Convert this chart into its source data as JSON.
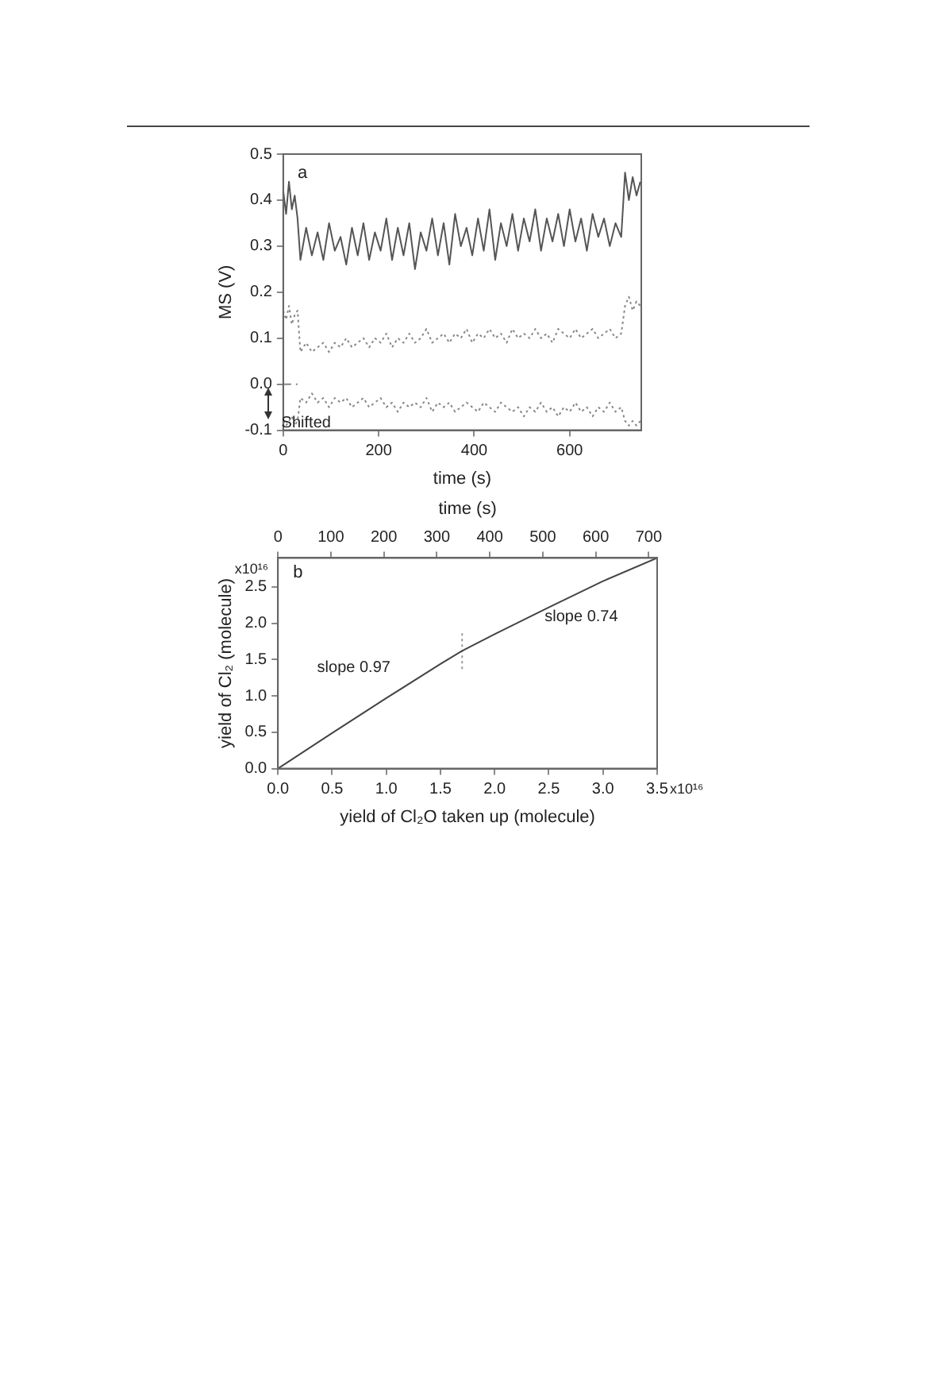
{
  "chart_data": [
    {
      "type": "line",
      "xlabel": "time (s)",
      "ylabel": "MS (V)",
      "xlim": [
        0,
        750
      ],
      "xticks": [
        0,
        200,
        400,
        600
      ],
      "ylim": [
        -0.1,
        0.5
      ],
      "yticks": [
        -0.1,
        {
          "value": 0,
          "label": "0.0"
        },
        0.1,
        0.2,
        0.3,
        0.4,
        0.5
      ],
      "grid": false,
      "legend": false,
      "marker": "none",
      "x": [
        0,
        6,
        12,
        18,
        24,
        30,
        36,
        48,
        60,
        72,
        84,
        96,
        108,
        120,
        132,
        144,
        156,
        168,
        180,
        192,
        204,
        216,
        228,
        240,
        252,
        264,
        276,
        288,
        300,
        312,
        324,
        336,
        348,
        360,
        372,
        384,
        396,
        408,
        420,
        432,
        444,
        456,
        468,
        480,
        492,
        504,
        516,
        528,
        540,
        552,
        564,
        576,
        588,
        600,
        612,
        624,
        636,
        648,
        660,
        672,
        684,
        696,
        708,
        716,
        724,
        732,
        740,
        748
      ],
      "annotations": [
        "a",
        {
          "text": "Shifted",
          "x": 48,
          "y": -0.085
        }
      ],
      "series": [
        {
          "color": "#555555",
          "line_style": "solid",
          "values": [
            0.42,
            0.37,
            0.44,
            0.38,
            0.41,
            0.36,
            0.27,
            0.34,
            0.28,
            0.33,
            0.27,
            0.35,
            0.29,
            0.32,
            0.26,
            0.34,
            0.28,
            0.35,
            0.27,
            0.33,
            0.29,
            0.36,
            0.27,
            0.34,
            0.28,
            0.35,
            0.25,
            0.33,
            0.29,
            0.36,
            0.28,
            0.35,
            0.26,
            0.37,
            0.3,
            0.34,
            0.28,
            0.36,
            0.29,
            0.38,
            0.27,
            0.35,
            0.3,
            0.37,
            0.29,
            0.36,
            0.31,
            0.38,
            0.29,
            0.36,
            0.31,
            0.37,
            0.3,
            0.38,
            0.31,
            0.36,
            0.29,
            0.37,
            0.32,
            0.36,
            0.3,
            0.35,
            0.32,
            0.46,
            0.4,
            0.45,
            0.41,
            0.44
          ]
        },
        {
          "color": "#888888",
          "line_style": "dotted",
          "values": [
            0.16,
            0.14,
            0.17,
            0.13,
            0.15,
            0.16,
            0.07,
            0.09,
            0.07,
            0.08,
            0.09,
            0.07,
            0.09,
            0.08,
            0.1,
            0.08,
            0.09,
            0.1,
            0.08,
            0.1,
            0.09,
            0.11,
            0.08,
            0.1,
            0.09,
            0.11,
            0.09,
            0.1,
            0.12,
            0.09,
            0.1,
            0.11,
            0.09,
            0.11,
            0.1,
            0.12,
            0.09,
            0.11,
            0.1,
            0.12,
            0.1,
            0.11,
            0.09,
            0.12,
            0.1,
            0.11,
            0.1,
            0.12,
            0.1,
            0.11,
            0.09,
            0.12,
            0.11,
            0.1,
            0.12,
            0.1,
            0.11,
            0.12,
            0.1,
            0.11,
            0.12,
            0.1,
            0.11,
            0.17,
            0.19,
            0.16,
            0.18,
            0.17
          ]
        },
        {
          "color": "#888888",
          "line_style": "dotted",
          "values": [
            -0.08,
            -0.09,
            -0.08,
            -0.07,
            -0.09,
            -0.08,
            -0.03,
            -0.04,
            -0.02,
            -0.04,
            -0.03,
            -0.05,
            -0.03,
            -0.04,
            -0.03,
            -0.05,
            -0.04,
            -0.03,
            -0.05,
            -0.04,
            -0.03,
            -0.05,
            -0.04,
            -0.06,
            -0.04,
            -0.05,
            -0.04,
            -0.05,
            -0.03,
            -0.06,
            -0.04,
            -0.05,
            -0.04,
            -0.06,
            -0.05,
            -0.04,
            -0.05,
            -0.06,
            -0.04,
            -0.05,
            -0.06,
            -0.04,
            -0.05,
            -0.06,
            -0.05,
            -0.07,
            -0.05,
            -0.06,
            -0.04,
            -0.06,
            -0.05,
            -0.07,
            -0.05,
            -0.06,
            -0.04,
            -0.06,
            -0.05,
            -0.07,
            -0.05,
            -0.06,
            -0.04,
            -0.06,
            -0.05,
            -0.08,
            -0.09,
            -0.08,
            -0.09,
            -0.08
          ]
        },
        {
          "color": "#888888",
          "line_style": "dashed",
          "x": [
            0,
            30
          ],
          "values": [
            0,
            0
          ]
        }
      ]
    },
    {
      "type": "line",
      "xlabel": "yield of Cl₂O taken up (molecule)",
      "ylabel": "yield of Cl₂ (molecule)",
      "x2label": "time (s)",
      "xlim": [
        0,
        3.5
      ],
      "xticks": [
        {
          "value": 0,
          "label": "0.0"
        },
        0.5,
        {
          "value": 1,
          "label": "1.0"
        },
        1.5,
        {
          "value": 2,
          "label": "2.0"
        },
        2.5,
        {
          "value": 3,
          "label": "3.0"
        },
        3.5
      ],
      "x2lim": [
        0,
        716
      ],
      "x2ticks": [
        0,
        100,
        200,
        300,
        400,
        500,
        600,
        700
      ],
      "ylim": [
        0,
        2.9
      ],
      "yticks": [
        {
          "value": 0,
          "label": "0.0"
        },
        0.5,
        {
          "value": 1,
          "label": "1.0"
        },
        1.5,
        {
          "value": 2,
          "label": "2.0"
        },
        2.5
      ],
      "grid": false,
      "legend": false,
      "marker": "none",
      "annotations": [
        "b",
        "slope 0.97",
        "slope 0.74",
        "x10¹⁶",
        "x10¹⁶"
      ],
      "series": [
        {
          "color": "#444444",
          "line_style": "solid",
          "x": [
            0,
            0.5,
            1.0,
            1.5,
            1.7,
            2.0,
            2.5,
            3.0,
            3.5
          ],
          "values": [
            0,
            0.49,
            0.97,
            1.44,
            1.62,
            1.85,
            2.22,
            2.58,
            2.9
          ]
        },
        {
          "color": "#999999",
          "line_style": "dotted",
          "x": [
            1.7,
            1.7
          ],
          "values": [
            1.37,
            1.87
          ]
        }
      ]
    }
  ]
}
